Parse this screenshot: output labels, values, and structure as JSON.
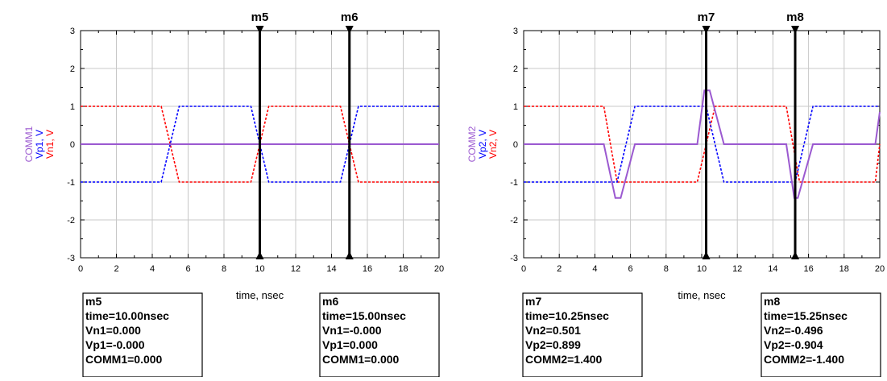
{
  "chart_data": [
    {
      "type": "line",
      "xlabel": "time, nsec",
      "ylabels": [
        {
          "text": "COMM1",
          "color": "#9b59d0"
        },
        {
          "text": "Vp1, V",
          "color": "#0000ff"
        },
        {
          "text": "Vn1, V",
          "color": "#ff0000"
        }
      ],
      "xlim": [
        0,
        20
      ],
      "ylim": [
        -3,
        3
      ],
      "xticks": [
        "0",
        "2",
        "4",
        "6",
        "8",
        "10",
        "12",
        "14",
        "16",
        "18",
        "20"
      ],
      "yticks": [
        "-3",
        "-2",
        "-1",
        "0",
        "1",
        "2",
        "3"
      ],
      "grid": true,
      "series": [
        {
          "id": "Vn1",
          "color": "#ff0000",
          "style": "dashed",
          "x": [
            0,
            4.5,
            5.5,
            9.5,
            10.5,
            14.5,
            15.5,
            20
          ],
          "y": [
            1,
            1,
            -1,
            -1,
            1,
            1,
            -1,
            -1
          ]
        },
        {
          "id": "Vp1",
          "color": "#0000ff",
          "style": "dashed",
          "x": [
            0,
            4.5,
            5.5,
            9.5,
            10.5,
            14.5,
            15.5,
            20
          ],
          "y": [
            -1,
            -1,
            1,
            1,
            -1,
            -1,
            1,
            1
          ]
        },
        {
          "id": "COMM1",
          "color": "#9b59d0",
          "style": "solid",
          "x": [
            0,
            20
          ],
          "y": [
            0,
            0
          ]
        }
      ],
      "markers": [
        {
          "name": "m5",
          "x": 10,
          "lines": [
            "m5",
            "time=10.00nsec",
            "Vn1=0.000",
            "Vp1=-0.000",
            "COMM1=0.000"
          ]
        },
        {
          "name": "m6",
          "x": 15,
          "lines": [
            "m6",
            "time=15.00nsec",
            "Vn1=-0.000",
            "Vp1=0.000",
            "COMM1=0.000"
          ]
        }
      ]
    },
    {
      "type": "line",
      "xlabel": "time, nsec",
      "ylabels": [
        {
          "text": "COMM2",
          "color": "#9b59d0"
        },
        {
          "text": "Vp2, V",
          "color": "#0000ff"
        },
        {
          "text": "Vn2, V",
          "color": "#ff0000"
        }
      ],
      "xlim": [
        0,
        20
      ],
      "ylim": [
        -3,
        3
      ],
      "xticks": [
        "0",
        "2",
        "4",
        "6",
        "8",
        "10",
        "12",
        "14",
        "16",
        "18",
        "20"
      ],
      "yticks": [
        "-3",
        "-2",
        "-1",
        "0",
        "1",
        "2",
        "3"
      ],
      "grid": true,
      "series": [
        {
          "id": "Vn2",
          "color": "#ff0000",
          "style": "dashed",
          "x": [
            0,
            4.5,
            5.25,
            9.75,
            10.75,
            14.75,
            15.5,
            19.75,
            20
          ],
          "y": [
            1,
            1,
            -1,
            -1,
            1,
            1,
            -1,
            -1,
            0
          ]
        },
        {
          "id": "Vp2",
          "color": "#0000ff",
          "style": "dashed",
          "x": [
            0,
            5.25,
            6.25,
            10.25,
            11.25,
            15.25,
            16.25,
            20
          ],
          "y": [
            -1,
            -1,
            1,
            1,
            -1,
            -1,
            1,
            1
          ]
        },
        {
          "id": "COMM2",
          "color": "#9b59d0",
          "style": "solid",
          "x": [
            0,
            4.5,
            5.15,
            5.45,
            6.25,
            9.75,
            10.15,
            10.45,
            11.25,
            14.75,
            15.2,
            15.4,
            16.25,
            19.75,
            20
          ],
          "y": [
            0,
            0,
            -1.42,
            -1.42,
            0,
            0,
            1.42,
            1.42,
            0,
            0,
            -1.42,
            -1.42,
            0,
            0,
            0.85
          ]
        }
      ],
      "markers": [
        {
          "name": "m7",
          "x": 10.25,
          "lines": [
            "m7",
            "time=10.25nsec",
            "Vn2=0.501",
            "Vp2=0.899",
            "COMM2=1.400"
          ]
        },
        {
          "name": "m8",
          "x": 15.25,
          "lines": [
            "m8",
            "time=15.25nsec",
            "Vn2=-0.496",
            "Vp2=-0.904",
            "COMM2=-1.400"
          ]
        }
      ]
    }
  ]
}
